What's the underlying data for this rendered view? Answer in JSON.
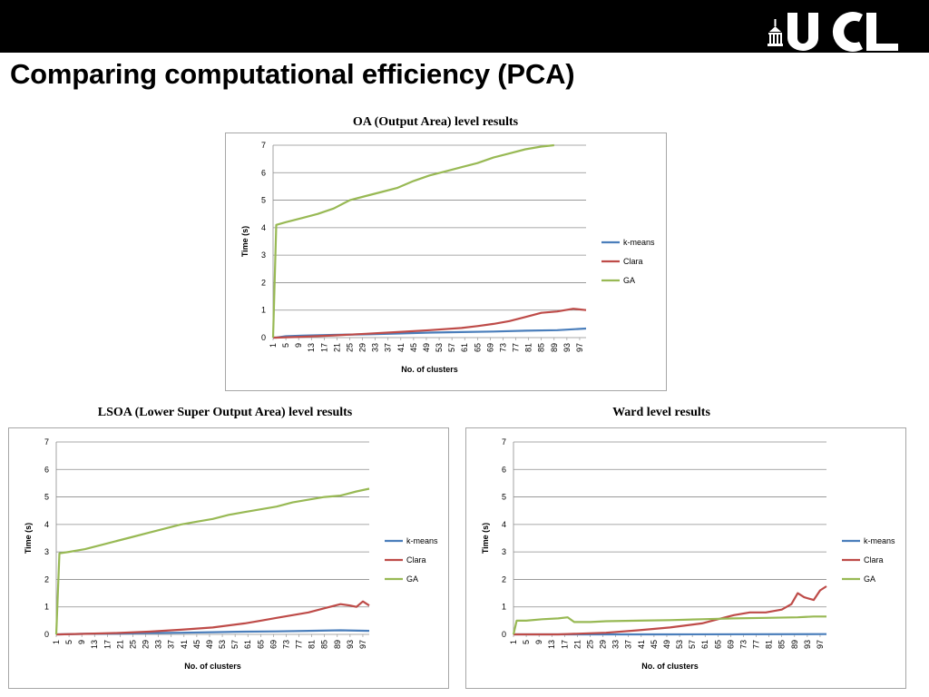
{
  "slide": {
    "title": "Comparing computational efficiency (PCA)",
    "logo_text": "UCL"
  },
  "colors": {
    "kmeans": "#4a7ebb",
    "clara": "#be4b48",
    "ga": "#98b954",
    "grid": "#8c8c8c"
  },
  "chart_data": [
    {
      "type": "line",
      "title": "OA (Output Area) level results",
      "xlabel": "No. of clusters",
      "ylabel": "Time (s)",
      "ylim": [
        0,
        7
      ],
      "yticks": [
        0,
        1,
        2,
        3,
        4,
        5,
        6,
        7
      ],
      "xlim": [
        1,
        99
      ],
      "xticks": [
        1,
        5,
        9,
        13,
        17,
        21,
        25,
        29,
        33,
        37,
        41,
        45,
        49,
        53,
        57,
        61,
        65,
        69,
        73,
        77,
        81,
        85,
        89,
        93,
        97
      ],
      "grid": true,
      "legend": "right",
      "series": [
        {
          "name": "k-means",
          "x": [
            1,
            2,
            5,
            10,
            20,
            30,
            40,
            50,
            60,
            70,
            80,
            90,
            99
          ],
          "values": [
            0,
            0,
            0.05,
            0.07,
            0.1,
            0.12,
            0.15,
            0.18,
            0.2,
            0.22,
            0.25,
            0.27,
            0.33
          ]
        },
        {
          "name": "Clara",
          "x": [
            1,
            2,
            10,
            20,
            30,
            40,
            50,
            60,
            65,
            70,
            75,
            80,
            85,
            90,
            95,
            99
          ],
          "values": [
            0,
            0,
            0.03,
            0.08,
            0.14,
            0.2,
            0.27,
            0.35,
            0.42,
            0.5,
            0.6,
            0.75,
            0.9,
            0.95,
            1.05,
            1.0
          ]
        },
        {
          "name": "GA",
          "x": [
            1,
            2,
            5,
            10,
            15,
            20,
            25,
            30,
            35,
            40,
            45,
            50,
            55,
            60,
            65,
            70,
            75,
            80,
            85,
            89
          ],
          "values": [
            0,
            4.1,
            4.2,
            4.35,
            4.5,
            4.7,
            5.0,
            5.15,
            5.3,
            5.45,
            5.7,
            5.9,
            6.05,
            6.2,
            6.35,
            6.55,
            6.7,
            6.85,
            6.95,
            7.0
          ]
        }
      ]
    },
    {
      "type": "line",
      "title": "LSOA (Lower Super Output Area) level results",
      "xlabel": "No. of clusters",
      "ylabel": "Time (s)",
      "ylim": [
        0,
        7
      ],
      "yticks": [
        0,
        1,
        2,
        3,
        4,
        5,
        6,
        7
      ],
      "xlim": [
        1,
        99
      ],
      "xticks": [
        1,
        5,
        9,
        13,
        17,
        21,
        25,
        29,
        33,
        37,
        41,
        45,
        49,
        53,
        57,
        61,
        65,
        69,
        73,
        77,
        81,
        85,
        89,
        93,
        97
      ],
      "grid": true,
      "legend": "right",
      "series": [
        {
          "name": "k-means",
          "x": [
            1,
            2,
            10,
            20,
            30,
            40,
            50,
            60,
            70,
            80,
            90,
            99
          ],
          "values": [
            0,
            0,
            0.02,
            0.03,
            0.05,
            0.06,
            0.08,
            0.1,
            0.11,
            0.13,
            0.15,
            0.13
          ]
        },
        {
          "name": "Clara",
          "x": [
            1,
            2,
            10,
            20,
            30,
            40,
            50,
            60,
            65,
            70,
            75,
            80,
            85,
            90,
            93,
            95,
            97,
            99
          ],
          "values": [
            0,
            0,
            0.02,
            0.05,
            0.1,
            0.17,
            0.25,
            0.4,
            0.5,
            0.6,
            0.7,
            0.8,
            0.95,
            1.1,
            1.05,
            1.0,
            1.2,
            1.05
          ]
        },
        {
          "name": "GA",
          "x": [
            1,
            2,
            5,
            10,
            15,
            20,
            25,
            30,
            35,
            40,
            45,
            50,
            55,
            60,
            65,
            70,
            75,
            80,
            85,
            90,
            95,
            99
          ],
          "values": [
            0,
            2.95,
            3.0,
            3.1,
            3.25,
            3.4,
            3.55,
            3.7,
            3.85,
            4.0,
            4.1,
            4.2,
            4.35,
            4.45,
            4.55,
            4.65,
            4.8,
            4.9,
            5.0,
            5.05,
            5.2,
            5.3
          ]
        }
      ]
    },
    {
      "type": "line",
      "title": "Ward level results",
      "xlabel": "No. of clusters",
      "ylabel": "Time (s)",
      "ylim": [
        0,
        7
      ],
      "yticks": [
        0,
        1,
        2,
        3,
        4,
        5,
        6,
        7
      ],
      "xlim": [
        1,
        99
      ],
      "xticks": [
        1,
        5,
        9,
        13,
        17,
        21,
        25,
        29,
        33,
        37,
        41,
        45,
        49,
        53,
        57,
        61,
        65,
        69,
        73,
        77,
        81,
        85,
        89,
        93,
        97
      ],
      "grid": true,
      "legend": "right",
      "series": [
        {
          "name": "k-means",
          "x": [
            1,
            50,
            99
          ],
          "values": [
            0,
            0,
            0.01
          ]
        },
        {
          "name": "Clara",
          "x": [
            1,
            15,
            20,
            30,
            40,
            50,
            60,
            65,
            70,
            75,
            80,
            85,
            88,
            90,
            92,
            95,
            97,
            99
          ],
          "values": [
            0,
            0,
            0.02,
            0.06,
            0.15,
            0.25,
            0.4,
            0.55,
            0.7,
            0.8,
            0.8,
            0.9,
            1.1,
            1.5,
            1.35,
            1.25,
            1.6,
            1.75
          ]
        },
        {
          "name": "GA",
          "x": [
            1,
            2,
            5,
            10,
            15,
            18,
            20,
            25,
            30,
            40,
            50,
            60,
            70,
            80,
            90,
            95,
            99
          ],
          "values": [
            0,
            0.5,
            0.5,
            0.55,
            0.58,
            0.62,
            0.45,
            0.45,
            0.48,
            0.5,
            0.52,
            0.55,
            0.58,
            0.6,
            0.62,
            0.65,
            0.65
          ]
        }
      ]
    }
  ]
}
